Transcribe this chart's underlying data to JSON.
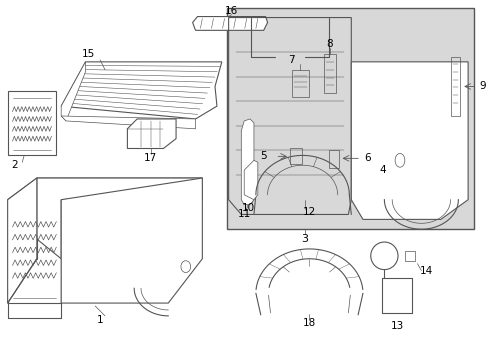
{
  "background_color": "#ffffff",
  "line_color": "#555555",
  "text_color": "#000000",
  "box3_color": "#d8d8d8",
  "lw_main": 0.8,
  "lw_thin": 0.5,
  "font_size": 7.5
}
